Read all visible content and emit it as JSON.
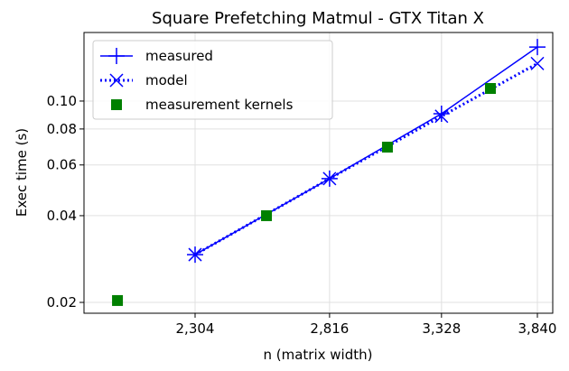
{
  "chart_data": {
    "type": "line",
    "title": "Square Prefetching Matmul - GTX Titan X",
    "xlabel": "n (matrix width)",
    "ylabel": "Exec time (s)",
    "xlog": true,
    "ylog": true,
    "grid": true,
    "legend": "upper left",
    "xlim": [
      1952,
      3929
    ],
    "ylim": [
      0.01834,
      0.173
    ],
    "xticks": [
      {
        "value": 2304,
        "label": "2,304"
      },
      {
        "value": 2816,
        "label": "2,816"
      },
      {
        "value": 3328,
        "label": "3,328"
      },
      {
        "value": 3840,
        "label": "3,840"
      }
    ],
    "yticks": [
      0.02,
      0.04,
      0.06,
      0.08,
      {
        "value": 0.1,
        "label": "0.10"
      }
    ],
    "series": [
      {
        "name": "measured",
        "color": "#0000ff",
        "linestyle": "solid",
        "marker": "+",
        "x": [
          2304,
          2816,
          3328,
          3840
        ],
        "values": [
          0.0293,
          0.0538,
          0.0904,
          0.154
        ]
      },
      {
        "name": "model",
        "color": "#0000ff",
        "linestyle": "dotted",
        "marker": "x",
        "x": [
          2304,
          2816,
          3328,
          3840
        ],
        "values": [
          0.0293,
          0.0538,
          0.0886,
          0.135
        ]
      },
      {
        "name": "measurement kernels",
        "color": "#008000",
        "linestyle": "none",
        "marker": "s",
        "x": [
          2052,
          2563,
          3070,
          3580
        ],
        "values": [
          0.0203,
          0.04,
          0.0692,
          0.1106
        ]
      }
    ]
  }
}
